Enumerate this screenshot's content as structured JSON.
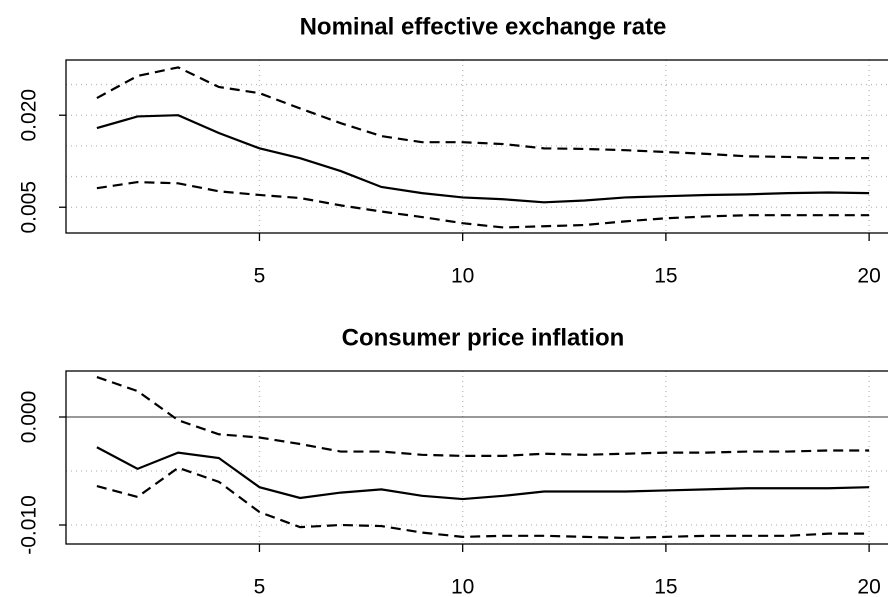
{
  "chart_data": [
    {
      "type": "line",
      "title": "Nominal effective exchange rate",
      "x": [
        1,
        2,
        3,
        4,
        5,
        6,
        7,
        8,
        9,
        10,
        11,
        12,
        13,
        14,
        15,
        16,
        17,
        18,
        19,
        20
      ],
      "series": [
        {
          "color": "#000000",
          "style": "solid",
          "values": [
            0.0179,
            0.0198,
            0.02,
            0.0171,
            0.0146,
            0.013,
            0.0109,
            0.0083,
            0.0073,
            0.0066,
            0.0063,
            0.0058,
            0.0061,
            0.0066,
            0.0068,
            0.007,
            0.0071,
            0.0073,
            0.0074,
            0.0073
          ]
        },
        {
          "color": "#000000",
          "style": "dashed",
          "values": [
            0.0228,
            0.0264,
            0.0278,
            0.0246,
            0.0236,
            0.0211,
            0.0187,
            0.0166,
            0.0156,
            0.0156,
            0.0153,
            0.0146,
            0.0145,
            0.0143,
            0.014,
            0.0137,
            0.0133,
            0.0132,
            0.013,
            0.013
          ]
        },
        {
          "color": "#000000",
          "style": "dashed",
          "values": [
            0.0081,
            0.0091,
            0.0089,
            0.0076,
            0.007,
            0.0065,
            0.0053,
            0.0043,
            0.0034,
            0.0024,
            0.0017,
            0.0019,
            0.0021,
            0.0027,
            0.0032,
            0.0035,
            0.0037,
            0.0037,
            0.0037,
            0.0037
          ]
        }
      ],
      "xlim": [
        0.24,
        20.76
      ],
      "xticks": [
        5,
        10,
        15,
        20
      ],
      "ylim": [
        0.0008,
        0.029
      ],
      "yticks": [
        {
          "value": 0.005,
          "label": "0.005"
        },
        {
          "value": 0.02,
          "label": "0.020"
        }
      ],
      "ygrid": [
        0.005,
        0.01,
        0.015,
        0.02,
        0.025
      ],
      "grid": true
    },
    {
      "type": "line",
      "title": "Consumer price inflation",
      "x": [
        1,
        2,
        3,
        4,
        5,
        6,
        7,
        8,
        9,
        10,
        11,
        12,
        13,
        14,
        15,
        16,
        17,
        18,
        19,
        20
      ],
      "series": [
        {
          "color": "#000000",
          "style": "solid",
          "values": [
            -0.0028,
            -0.0048,
            -0.0033,
            -0.0038,
            -0.0065,
            -0.0075,
            -0.007,
            -0.0067,
            -0.0073,
            -0.0076,
            -0.0073,
            -0.0069,
            -0.0069,
            -0.0069,
            -0.0068,
            -0.0067,
            -0.0066,
            -0.0066,
            -0.0066,
            -0.0065
          ]
        },
        {
          "color": "#000000",
          "style": "dashed",
          "values": [
            0.0037,
            0.0024,
            -0.0003,
            -0.0016,
            -0.0019,
            -0.0025,
            -0.0032,
            -0.0032,
            -0.0035,
            -0.0036,
            -0.0036,
            -0.0034,
            -0.0035,
            -0.0034,
            -0.0033,
            -0.0033,
            -0.0032,
            -0.0032,
            -0.0031,
            -0.0031
          ]
        },
        {
          "color": "#000000",
          "style": "dashed",
          "values": [
            -0.0064,
            -0.0074,
            -0.0047,
            -0.006,
            -0.0088,
            -0.0102,
            -0.01,
            -0.0101,
            -0.0107,
            -0.0111,
            -0.011,
            -0.011,
            -0.0111,
            -0.0112,
            -0.0111,
            -0.011,
            -0.011,
            -0.011,
            -0.0108,
            -0.0108
          ]
        }
      ],
      "xlim": [
        0.24,
        20.76
      ],
      "xticks": [
        5,
        10,
        15,
        20
      ],
      "ylim": [
        -0.01176,
        0.00426
      ],
      "yticks": [
        {
          "value": -0.01,
          "label": "-0.010"
        },
        {
          "value": 0,
          "label": "0.000"
        }
      ],
      "ygrid": [
        -0.01,
        -0.005
      ],
      "hline": 0,
      "grid": true
    }
  ]
}
